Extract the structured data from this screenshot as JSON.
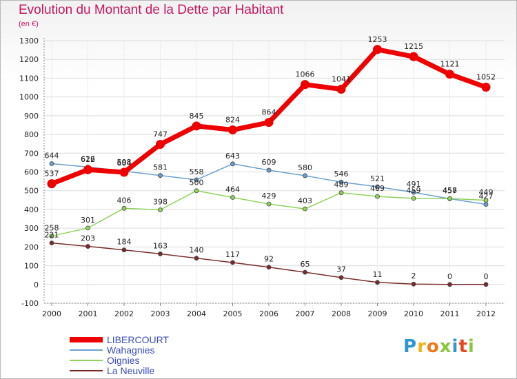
{
  "chart_data": {
    "type": "line",
    "title": "Evolution du Montant de la Dette par Habitant",
    "subtitle": "(en €)",
    "xlabel": "",
    "ylabel": "",
    "ylim": [
      -100,
      1300
    ],
    "yticks": [
      -100,
      0,
      100,
      200,
      300,
      400,
      500,
      600,
      700,
      800,
      900,
      1000,
      1100,
      1200,
      1300
    ],
    "grid": true,
    "legend_position": "bottom-left",
    "categories": [
      "2000",
      "2001",
      "2002",
      "2003",
      "2004",
      "2005",
      "2006",
      "2007",
      "2008",
      "2009",
      "2010",
      "2011",
      "2012"
    ],
    "series": [
      {
        "name": "LIBERCOURT",
        "color": "#ee0000",
        "line_width": 7,
        "marker_radius": 6.5,
        "values": [
          537,
          612,
          598,
          747,
          845,
          824,
          864,
          1066,
          1041,
          1253,
          1215,
          1121,
          1052
        ]
      },
      {
        "name": "Wahagnies",
        "color": "#6a9fd0",
        "line_width": 1.5,
        "marker_radius": 3,
        "values": [
          644,
          626,
          604,
          581,
          558,
          643,
          609,
          580,
          546,
          521,
          491,
          457,
          427
        ]
      },
      {
        "name": "Oignies",
        "color": "#8fd35a",
        "line_width": 1.5,
        "marker_radius": 3,
        "values": [
          258,
          301,
          406,
          398,
          500,
          464,
          429,
          403,
          489,
          469,
          459,
          458,
          449
        ]
      },
      {
        "name": "La Neuville",
        "color": "#7a2a2a",
        "line_width": 1.5,
        "marker_radius": 3,
        "values": [
          221,
          203,
          184,
          163,
          140,
          117,
          92,
          65,
          37,
          11,
          2,
          0,
          0
        ]
      }
    ]
  },
  "brand": {
    "letters": [
      "P",
      "r",
      "o",
      "x",
      "i",
      "t",
      "i"
    ],
    "colors": [
      "#2f95d6",
      "#f2b31b",
      "#f07a1a",
      "#8cc63f",
      "#2f95d6",
      "#e8451d",
      "#8cc63f"
    ]
  }
}
